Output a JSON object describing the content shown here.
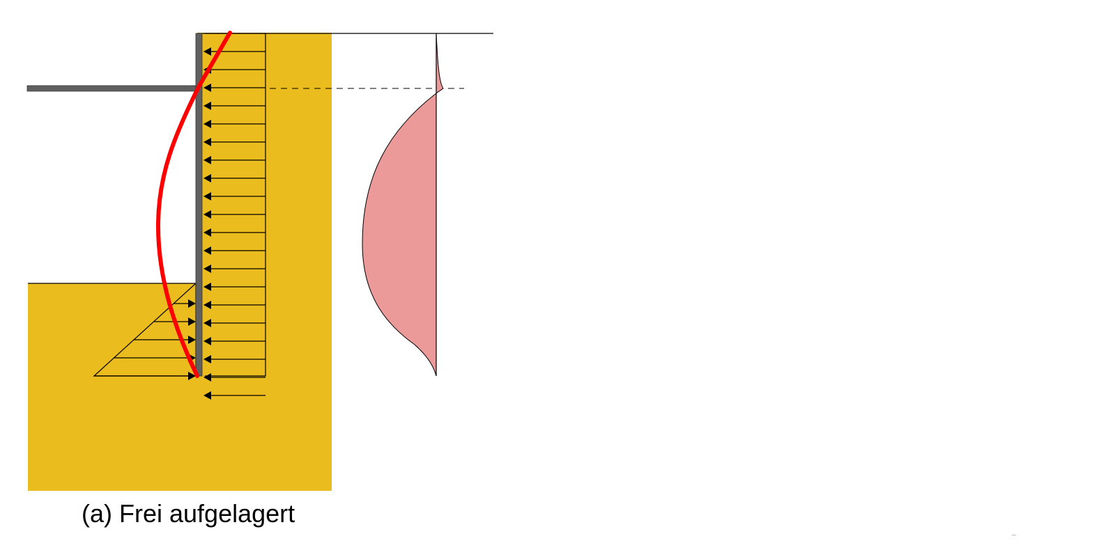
{
  "caption": "(a) Frei aufgelagert",
  "colors": {
    "soil": "#EBBC1E",
    "wall": "#606060",
    "anchor": "#606060",
    "deflection": "#FF0000",
    "moment_fill": "#EC999A",
    "line": "#000000"
  },
  "icons": {
    "load_arrow": "arrowhead-triangle"
  }
}
